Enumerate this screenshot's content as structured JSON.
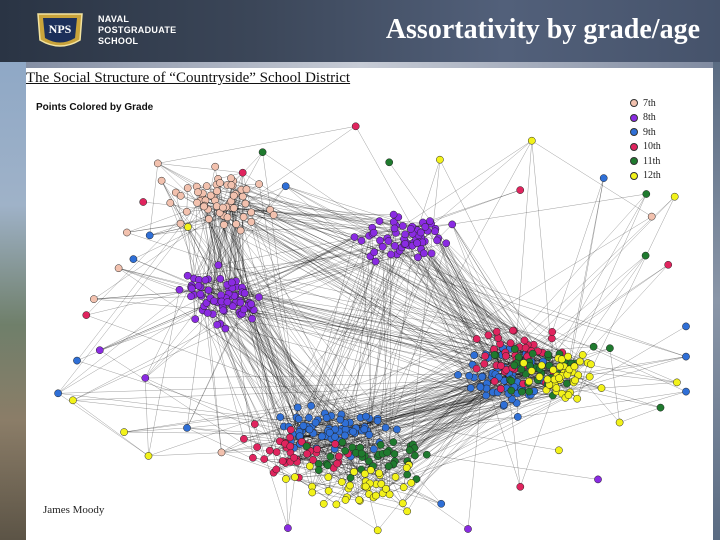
{
  "header": {
    "logo_lines": [
      "NAVAL",
      "POSTGRADUATE",
      "SCHOOL"
    ],
    "seal_text": "NPS",
    "slide_title": "Assortativity by grade/age"
  },
  "figure": {
    "title": "The Social Structure of “Countryside” School District",
    "subtitle": "Points Colored by Grade",
    "credit": "James Moody",
    "legend": [
      {
        "label": "7th",
        "color": "#f2c1ae"
      },
      {
        "label": "8th",
        "color": "#8a2be2"
      },
      {
        "label": "9th",
        "color": "#2f6fd6"
      },
      {
        "label": "10th",
        "color": "#e0245e"
      },
      {
        "label": "11th",
        "color": "#1f7a2e"
      },
      {
        "label": "12th",
        "color": "#f2f21a"
      }
    ]
  }
}
